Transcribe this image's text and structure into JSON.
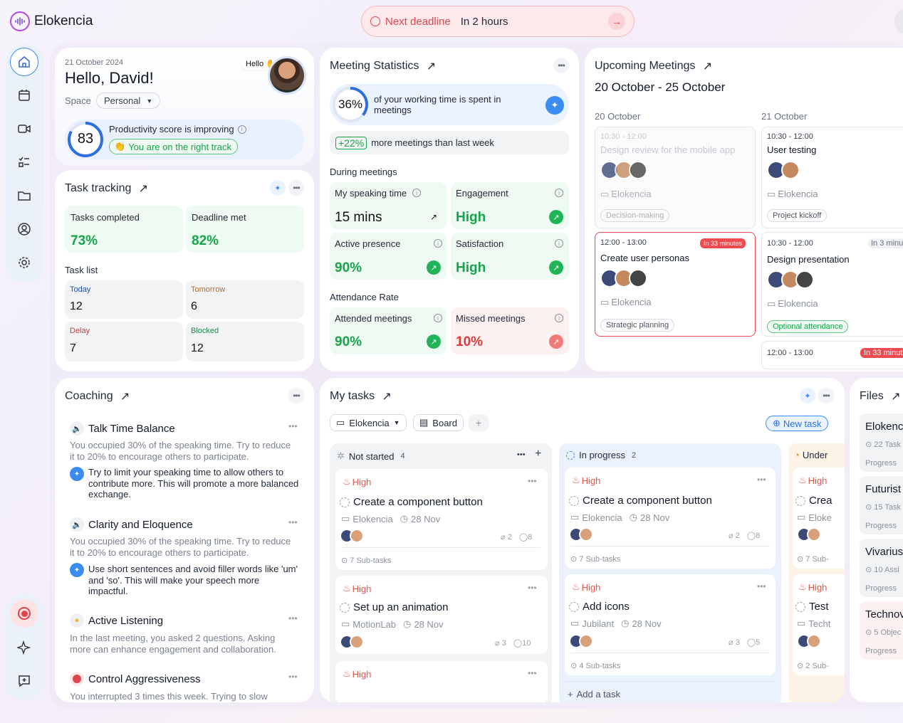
{
  "app": {
    "name": "Elokencia"
  },
  "deadline": {
    "label": "Next deadline",
    "value": "In 2 hours"
  },
  "greeting": {
    "date": "21 October 2024",
    "hello": "Hello, David!",
    "hello_bubble": "Hello",
    "space_label": "Space",
    "space_value": "Personal",
    "score": "83",
    "score_title": "Productivity score is improving",
    "score_badge": "You are on the right track"
  },
  "tasks": {
    "title": "Task tracking",
    "completed_label": "Tasks completed",
    "completed_value": "73%",
    "deadline_label": "Deadline met",
    "deadline_value": "82%",
    "list_title": "Task list",
    "list": [
      {
        "label": "Today",
        "value": "12",
        "color": "#1f4ea6"
      },
      {
        "label": "Tomorrow",
        "value": "6",
        "color": "#b86b2a"
      },
      {
        "label": "Delay",
        "value": "7",
        "color": "#c63a3a"
      },
      {
        "label": "Blocked",
        "value": "12",
        "color": "#1e8a4a"
      }
    ]
  },
  "meeting_stats": {
    "title": "Meeting Statistics",
    "pct": "36%",
    "pct_fraction": 0.36,
    "pct_text": "of your working time is spent in meetings",
    "increase": "+22%",
    "increase_text": "more meetings than last week",
    "during": "During meetings",
    "metrics": [
      {
        "label": "My speaking time",
        "value": "15 mins",
        "info": true
      },
      {
        "label": "Engagement",
        "value": "High",
        "info": true
      },
      {
        "label": "Active presence",
        "value": "90%",
        "info": true
      },
      {
        "label": "Satisfaction",
        "value": "High",
        "info": true
      }
    ],
    "attendance": "Attendance Rate",
    "attended_label": "Attended meetings",
    "attended_value": "90%",
    "missed_label": "Missed meetings",
    "missed_value": "10%"
  },
  "upcoming": {
    "title": "Upcoming Meetings",
    "range": "20 October - 25 October",
    "days": [
      {
        "label": "20 October",
        "meetings": [
          {
            "time": "10:30 - 12:00",
            "title": "Design review for the mobile app",
            "org": "Elokencia",
            "tag": "Decision-making",
            "state": "past"
          },
          {
            "time": "12:00 - 13:00",
            "title": "Create user personas",
            "org": "Elokencia",
            "tag": "Strategic planning",
            "badge": "In 33 minutes",
            "state": "active"
          }
        ]
      },
      {
        "label": "21 October",
        "meetings": [
          {
            "time": "10:30 - 12:00",
            "title": "User testing",
            "org": "Elokencia",
            "tag": "Project kickoff"
          },
          {
            "time": "10:30 - 12:00",
            "title": "Design presentation",
            "org": "Elokencia",
            "tag": "Optional attendance",
            "badge": "In 3 minut"
          },
          {
            "time": "12:00 - 13:00",
            "badge": "In 33 minut"
          }
        ]
      }
    ]
  },
  "coaching": {
    "title": "Coaching",
    "items": [
      {
        "icon": "speaker",
        "title": "Talk Time Balance",
        "text": "You occupied 30% of the speaking time. Try to reduce it to 20% to encourage others to participate.",
        "tip": "Try to limit your speaking time to allow others to contribute more. This will promote a more balanced exchange."
      },
      {
        "icon": "speaker",
        "title": "Clarity and Eloquence",
        "text": "You occupied 30% of the speaking time. Try to reduce it to 20% to encourage others to participate.",
        "tip": "Use short sentences and avoid filler words like 'um' and 'so'. This will make your speech more impactful."
      },
      {
        "icon": "bulb",
        "title": "Active Listening",
        "text": "In the last meeting, you asked 2 questions. Asking more can enhance engagement and collaboration."
      },
      {
        "icon": "stop",
        "title": "Control Aggressiveness",
        "text": "You interrupted 3 times this week. Trying to slow"
      }
    ]
  },
  "mytasks": {
    "title": "My tasks",
    "workspace": "Elokencia",
    "view": "Board",
    "new_task": "New task",
    "columns": [
      {
        "name": "Not started",
        "count": "4",
        "cards": [
          {
            "prio": "High",
            "title": "Create a component button",
            "org": "Elokencia",
            "date": "28 Nov",
            "att": "2",
            "com": "8",
            "sub": "7 Sub-tasks"
          },
          {
            "prio": "High",
            "title": "Set up an animation",
            "org": "MotionLab",
            "date": "28 Nov",
            "att": "3",
            "com": "10"
          },
          {
            "prio": "High"
          }
        ]
      },
      {
        "name": "In progress",
        "count": "2",
        "add": "Add a task",
        "cards": [
          {
            "prio": "High",
            "title": "Create a component button",
            "org": "Elokencia",
            "date": "28 Nov",
            "att": "2",
            "com": "8",
            "sub": "7 Sub-tasks"
          },
          {
            "prio": "High",
            "title": "Add icons",
            "org": "Jubilant",
            "date": "28 Nov",
            "att": "3",
            "com": "5",
            "sub": "4 Sub-tasks"
          }
        ]
      },
      {
        "name": "Under",
        "cards": [
          {
            "prio": "High",
            "title": "Crea",
            "org": "Eloke",
            "sub": "7 Sub-"
          },
          {
            "prio": "High",
            "title": "Test",
            "org": "Techt",
            "sub": "2 Sub-"
          }
        ]
      }
    ]
  },
  "files": {
    "title": "Files",
    "items": [
      {
        "name": "Elokenc",
        "meta": "22 Task",
        "progress": "Progress"
      },
      {
        "name": "Futurist",
        "meta": "15 Task",
        "progress": "Progress"
      },
      {
        "name": "Vivarius",
        "meta": "10 Assi",
        "progress": "Progress"
      },
      {
        "name": "Technov",
        "meta": "5 Objec",
        "progress": "Progress"
      }
    ]
  },
  "colors": {
    "accent": "#3b8cf0",
    "green": "#17a34a",
    "red": "#e03b3b",
    "brand": "#7a4cd6"
  }
}
